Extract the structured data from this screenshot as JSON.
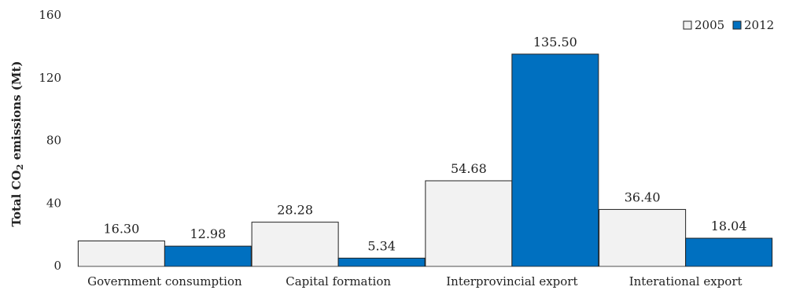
{
  "chart_data": {
    "type": "bar",
    "categories": [
      "Government consumption",
      "Capital formation",
      "Interprovincial export",
      "Interational export"
    ],
    "series": [
      {
        "name": "2005",
        "values": [
          16.3,
          28.28,
          54.68,
          36.4
        ],
        "labels": [
          "16.30",
          "28.28",
          "54.68",
          "36.40"
        ],
        "color": "#f2f2f2"
      },
      {
        "name": "2012",
        "values": [
          12.98,
          5.34,
          135.5,
          18.04
        ],
        "labels": [
          "12.98",
          "5.34",
          "135.50",
          "18.04"
        ],
        "color": "#0070c0"
      }
    ],
    "ylabel": {
      "prefix": "Total CO",
      "subscript": "2",
      "suffix": " emissions (Mt)"
    },
    "ylim": [
      0,
      160
    ],
    "yticks": [
      0,
      40,
      80,
      120,
      160
    ],
    "grid": false,
    "legend_position": "top-right"
  }
}
